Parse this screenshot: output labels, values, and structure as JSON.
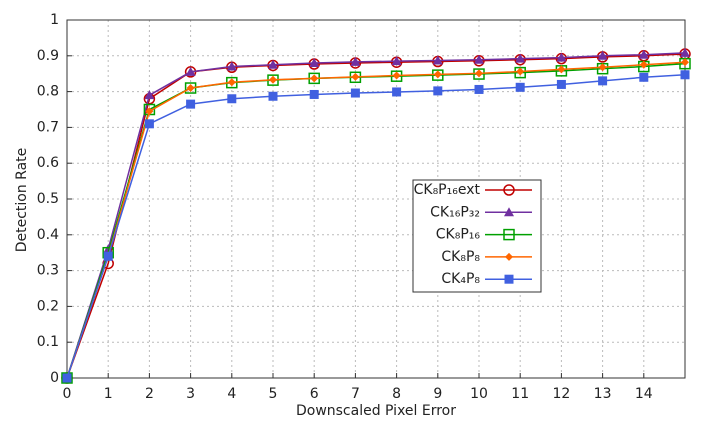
{
  "chart_data": {
    "type": "line",
    "x_label": "Downscaled Pixel Error",
    "y_label": "Detection Rate",
    "x": [
      0,
      1,
      2,
      3,
      4,
      5,
      6,
      7,
      8,
      9,
      10,
      11,
      12,
      13,
      14,
      15
    ],
    "xlim": [
      0,
      15
    ],
    "xticks": [
      0,
      1,
      2,
      3,
      4,
      5,
      6,
      7,
      8,
      9,
      10,
      11,
      12,
      13,
      14
    ],
    "ylim": [
      0,
      1
    ],
    "yticks": [
      0,
      0.1,
      0.2,
      0.3,
      0.4,
      0.5,
      0.6,
      0.7,
      0.8,
      0.9,
      1
    ],
    "grid": true,
    "legend": "right",
    "series": [
      {
        "name": "CK₈P₁₆ext",
        "color": "#c00000",
        "marker": "circle",
        "values": [
          0,
          0.32,
          0.78,
          0.855,
          0.868,
          0.873,
          0.877,
          0.88,
          0.882,
          0.884,
          0.886,
          0.889,
          0.892,
          0.897,
          0.9,
          0.905
        ]
      },
      {
        "name": "CK₁₆P₃₂",
        "color": "#7030a0",
        "marker": "triangle",
        "values": [
          0,
          0.36,
          0.79,
          0.855,
          0.87,
          0.875,
          0.88,
          0.883,
          0.885,
          0.887,
          0.889,
          0.892,
          0.895,
          0.9,
          0.903,
          0.908
        ]
      },
      {
        "name": "CK₈P₁₆",
        "color": "#00a000",
        "marker": "square-open",
        "values": [
          0,
          0.35,
          0.75,
          0.81,
          0.825,
          0.832,
          0.837,
          0.84,
          0.843,
          0.846,
          0.849,
          0.853,
          0.858,
          0.864,
          0.87,
          0.878
        ]
      },
      {
        "name": "CK₈P₈",
        "color": "#ff6600",
        "marker": "diamond",
        "values": [
          0,
          0.34,
          0.745,
          0.81,
          0.826,
          0.833,
          0.837,
          0.841,
          0.845,
          0.848,
          0.851,
          0.856,
          0.862,
          0.868,
          0.875,
          0.882
        ]
      },
      {
        "name": "CK₄P₈",
        "color": "#4060e0",
        "marker": "square",
        "values": [
          0,
          0.34,
          0.71,
          0.765,
          0.78,
          0.787,
          0.792,
          0.796,
          0.799,
          0.802,
          0.806,
          0.812,
          0.82,
          0.83,
          0.84,
          0.847
        ]
      }
    ]
  }
}
